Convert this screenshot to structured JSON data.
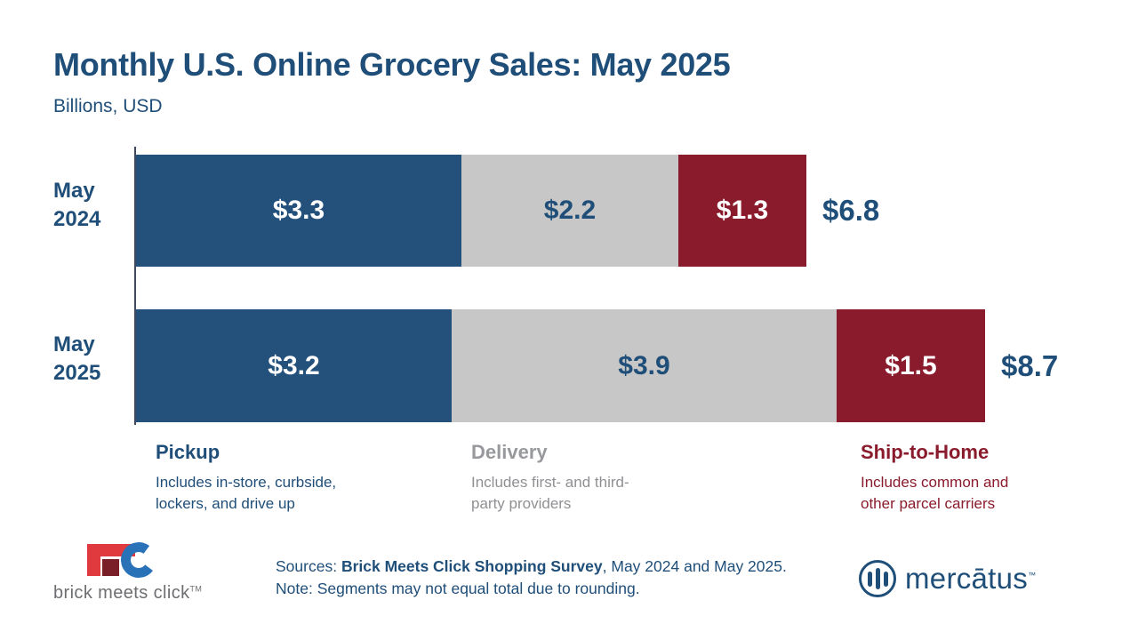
{
  "header": {
    "title": "Monthly U.S. Online Grocery Sales: May 2025",
    "subtitle": "Billions, USD"
  },
  "chart_data": {
    "type": "bar",
    "orientation": "horizontal",
    "stacked": true,
    "units": "Billions, USD",
    "categories": [
      "May 2024",
      "May 2025"
    ],
    "row_labels": [
      "May\n2024",
      "May\n2025"
    ],
    "series": [
      {
        "name": "Pickup",
        "color": "#24517c",
        "label_color": "#ffffff",
        "values": [
          3.3,
          3.2
        ]
      },
      {
        "name": "Delivery",
        "color": "#c7c7c7",
        "label_color": "#1f4e79",
        "values": [
          2.2,
          3.9
        ]
      },
      {
        "name": "Ship-to-Home",
        "color": "#8a1b2c",
        "label_color": "#ffffff",
        "values": [
          1.3,
          1.5
        ]
      }
    ],
    "value_labels": [
      [
        "$3.3",
        "$2.2",
        "$1.3"
      ],
      [
        "$3.2",
        "$3.9",
        "$1.5"
      ]
    ],
    "totals": [
      6.8,
      8.7
    ],
    "total_labels": [
      "$6.8",
      "$8.7"
    ],
    "legend_position": "bottom",
    "grid": false
  },
  "legend": {
    "items": [
      {
        "label": "Pickup",
        "description": "Includes in-store, curbside,\nlockers, and drive up",
        "color": "#1f4e79",
        "desc_color": "#1f4e79"
      },
      {
        "label": "Delivery",
        "description": "Includes first- and third-\nparty providers",
        "color": "#97999c",
        "desc_color": "#8f9093"
      },
      {
        "label": "Ship-to-Home",
        "description": "Includes common and\nother parcel carriers",
        "color": "#8a1b2c",
        "desc_color": "#8a1b2c"
      }
    ]
  },
  "footer": {
    "sources_prefix": "Sources: ",
    "sources_bold": "Brick Meets Click Shopping Survey",
    "sources_suffix": ", May 2024 and May 2025.",
    "note": "Note: Segments may not equal total due to rounding.",
    "brick_logo_text": "brick meets click",
    "brick_logo_tm": "TM",
    "mercatus_logo_text": "mercātus",
    "mercatus_logo_tm": "™"
  }
}
